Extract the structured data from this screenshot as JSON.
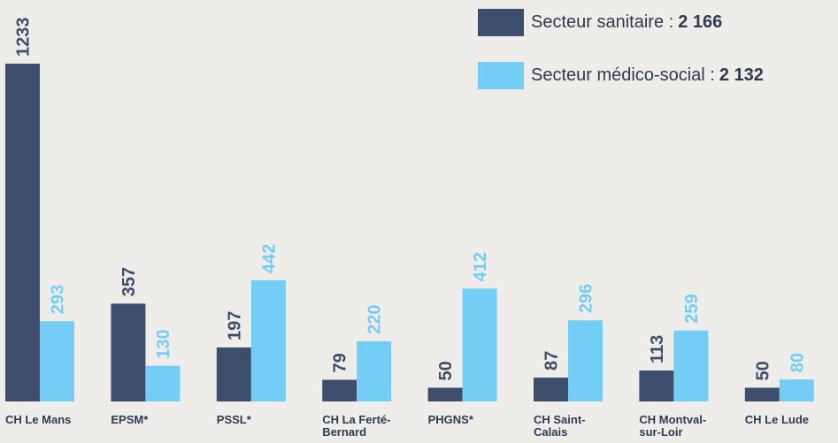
{
  "chart_data": {
    "type": "bar",
    "categories": [
      "CH Le Mans",
      "EPSM*",
      "PSSL*",
      "CH La Ferté-Bernard",
      "PHGNS*",
      "CH Saint-Calais",
      "CH Montval-sur-Loir",
      "CH Le Lude"
    ],
    "series": [
      {
        "name": "Secteur sanitaire :",
        "color": "#3c4e6b",
        "total": {
          "value": 2166,
          "label": "2 166"
        },
        "values": [
          1233,
          357,
          197,
          79,
          50,
          87,
          113,
          50
        ]
      },
      {
        "name": "Secteur médico-social :",
        "color": "#73cdf5",
        "total": {
          "value": 2132,
          "label": "2 132"
        },
        "values": [
          293,
          130,
          442,
          220,
          412,
          296,
          259,
          80
        ]
      }
    ]
  }
}
